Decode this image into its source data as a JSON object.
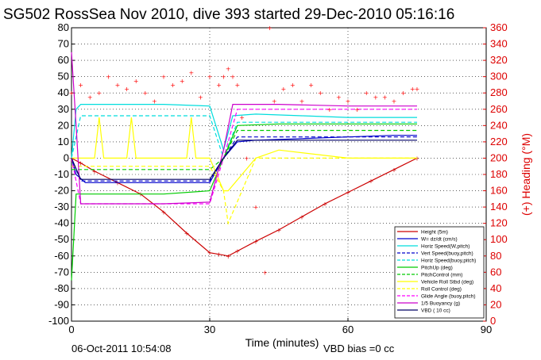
{
  "chart_data": {
    "type": "line",
    "title": "SG502 RossSea Nov 2010, dive 393 started 29-Dec-2010 05:16:16",
    "xlabel": "Time (minutes)",
    "ylabel_right": "(+) Heading (°M)",
    "xlim": [
      0,
      90
    ],
    "ylim": [
      -100,
      80
    ],
    "ylim_right": [
      0,
      360
    ],
    "xticks": [
      "0",
      "30",
      "60",
      "90"
    ],
    "yticks": [
      "80",
      "70",
      "60",
      "50",
      "40",
      "30",
      "20",
      "10",
      "0",
      "-10",
      "-20",
      "-30",
      "-40",
      "-50",
      "-60",
      "-70",
      "-80",
      "-90",
      "-100"
    ],
    "yticks_right": [
      "360",
      "340",
      "320",
      "300",
      "280",
      "260",
      "240",
      "220",
      "200",
      "180",
      "160",
      "140",
      "120",
      "100",
      "80",
      "60",
      "40",
      "20",
      "0"
    ],
    "grid": true,
    "legend_position": "bottom-right",
    "footer_date": "06-Oct-2011 10:54:08",
    "footer_note": "VBD bias =0 cc",
    "series": [
      {
        "name": "Height (5m)",
        "color": "#cc0000",
        "style": "solid-markers",
        "x": [
          0,
          2,
          5,
          10,
          15,
          20,
          25,
          30,
          32,
          34,
          36,
          40,
          45,
          50,
          55,
          60,
          65,
          70,
          75
        ],
        "y": [
          0,
          -3,
          -8,
          -15,
          -22,
          -33,
          -46,
          -58,
          -59,
          -60,
          -57,
          -51,
          -44,
          -36,
          -28,
          -21,
          -14,
          -7,
          0
        ]
      },
      {
        "name": "W= dz/dt (cm/s)",
        "color": "#0000cc",
        "style": "solid",
        "x": [
          0,
          1,
          3,
          10,
          20,
          30,
          33,
          36,
          40,
          50,
          60,
          70,
          75
        ],
        "y": [
          0,
          -10,
          -15,
          -15,
          -15,
          -15,
          0,
          10,
          11,
          12,
          13,
          14,
          14
        ]
      },
      {
        "name": "Horiz Speed(W,pitch)",
        "color": "#00dddd",
        "style": "solid",
        "x": [
          0,
          1,
          2,
          10,
          20,
          30,
          33,
          35,
          40,
          50,
          60,
          70,
          75
        ],
        "y": [
          0,
          30,
          33,
          33,
          33,
          32,
          5,
          26,
          27,
          26,
          25,
          25,
          25
        ]
      },
      {
        "name": "Vert Speed(buoy,pitch)",
        "color": "#0000cc",
        "style": "dashed",
        "x": [
          0,
          2,
          10,
          20,
          30,
          33,
          36,
          45,
          60,
          75
        ],
        "y": [
          0,
          -14,
          -14,
          -14,
          -14,
          0,
          13,
          13,
          13,
          13
        ]
      },
      {
        "name": "Horiz Speed(buoy,pitch)",
        "color": "#00dddd",
        "style": "dashed",
        "x": [
          0,
          2,
          10,
          20,
          30,
          33,
          36,
          45,
          60,
          75
        ],
        "y": [
          0,
          26,
          26,
          26,
          26,
          0,
          22,
          22,
          22,
          22
        ]
      },
      {
        "name": "PitchUp (deg)",
        "color": "#00cc00",
        "style": "solid",
        "x": [
          0,
          1,
          2,
          10,
          20,
          30,
          33,
          36,
          45,
          60,
          75
        ],
        "y": [
          -75,
          -22,
          -22,
          -22,
          -22,
          -20,
          0,
          20,
          21,
          21,
          21
        ]
      },
      {
        "name": "PitchControl (mm)",
        "color": "#00cc00",
        "style": "dashed",
        "x": [
          0,
          2,
          10,
          20,
          30,
          33,
          36,
          45,
          60,
          75
        ],
        "y": [
          -7,
          -7,
          -7,
          -7,
          -7,
          0,
          17,
          17,
          17,
          17
        ]
      },
      {
        "name": "Vehicle Roll Stbd (deg)",
        "color": "#ffff00",
        "style": "solid",
        "x": [
          0,
          2,
          5,
          6,
          7,
          10,
          12,
          13,
          14,
          20,
          25,
          26,
          27,
          30,
          33,
          34,
          40,
          45,
          60,
          75
        ],
        "y": [
          0,
          0,
          0,
          25,
          0,
          0,
          0,
          25,
          0,
          0,
          0,
          25,
          0,
          0,
          -20,
          -20,
          0,
          5,
          0,
          0
        ]
      },
      {
        "name": "Roll Control (deg)",
        "color": "#ffff00",
        "style": "dashed",
        "x": [
          0,
          30,
          33,
          34,
          40,
          45,
          75
        ],
        "y": [
          -5,
          -5,
          -20,
          -40,
          0,
          0,
          0
        ]
      },
      {
        "name": "Glide Angle (buoy,pitch)",
        "color": "#ff00ff",
        "style": "dashed",
        "x": [
          0,
          2,
          10,
          20,
          30,
          33,
          36,
          45,
          60,
          75
        ],
        "y": [
          0,
          -28,
          -28,
          -28,
          -28,
          0,
          30,
          30,
          30,
          30
        ]
      },
      {
        "name": "1/5 Buoyancy (g)",
        "color": "#cc00cc",
        "style": "solid",
        "x": [
          0,
          1,
          2,
          10,
          20,
          30,
          33,
          35,
          45,
          60,
          75
        ],
        "y": [
          65,
          20,
          -28,
          -28,
          -28,
          -27,
          5,
          33,
          33,
          32,
          32
        ]
      },
      {
        "name": "VBD ( 10 cc)",
        "color": "#000066",
        "style": "solid",
        "x": [
          0,
          2,
          10,
          20,
          30,
          33,
          36,
          45,
          60,
          75
        ],
        "y": [
          0,
          -13,
          -13,
          -13,
          -13,
          0,
          11,
          11,
          11,
          11
        ]
      },
      {
        "name": "Heading",
        "color": "#ff0000",
        "style": "markers",
        "axis": "right",
        "x": [
          0,
          2,
          4,
          6,
          8,
          10,
          12,
          14,
          16,
          18,
          20,
          22,
          24,
          26,
          28,
          30,
          32,
          33,
          34,
          35,
          36,
          37,
          38,
          40,
          42,
          43,
          44,
          46,
          48,
          50,
          52,
          54,
          56,
          58,
          60,
          62,
          64,
          66,
          68,
          70,
          72,
          74,
          75
        ],
        "y": [
          280,
          290,
          275,
          280,
          300,
          290,
          285,
          295,
          280,
          270,
          300,
          290,
          295,
          305,
          275,
          300,
          290,
          300,
          310,
          300,
          290,
          250,
          200,
          140,
          60,
          360,
          270,
          285,
          290,
          270,
          290,
          280,
          260,
          275,
          270,
          260,
          280,
          275,
          275,
          270,
          280,
          285,
          285
        ]
      }
    ]
  }
}
